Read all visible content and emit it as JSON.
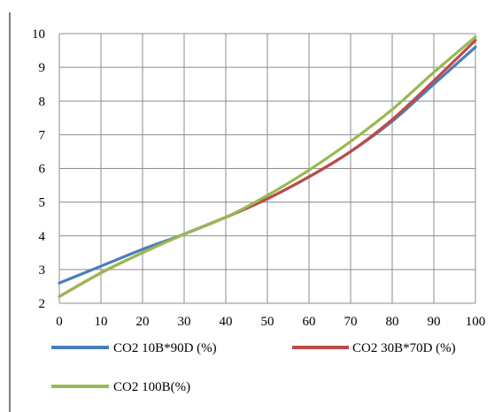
{
  "chart_data": {
    "type": "line",
    "title": "",
    "xlabel": "",
    "ylabel": "",
    "xlim": [
      0,
      100
    ],
    "ylim": [
      2,
      10
    ],
    "x_ticks": [
      "0",
      "10",
      "20",
      "30",
      "40",
      "50",
      "60",
      "70",
      "80",
      "90",
      "100"
    ],
    "y_ticks": [
      "2",
      "3",
      "4",
      "5",
      "6",
      "7",
      "8",
      "9",
      "10"
    ],
    "grid": true,
    "legend_position": "bottom",
    "series": [
      {
        "name": "CO2 10B*90D (%)",
        "color": "#4a7ebb",
        "x": [
          0,
          10,
          20,
          30,
          40,
          50,
          60,
          70,
          80,
          90,
          100
        ],
        "y": [
          2.6,
          3.1,
          3.6,
          4.05,
          4.55,
          5.1,
          5.75,
          6.5,
          7.4,
          8.5,
          9.6
        ]
      },
      {
        "name": "CO2 30B*70D (%)",
        "color": "#be4b48",
        "x": [
          0,
          10,
          20,
          30,
          40,
          50,
          60,
          70,
          80,
          90,
          100
        ],
        "y": [
          2.2,
          2.9,
          3.5,
          4.05,
          4.55,
          5.1,
          5.75,
          6.5,
          7.45,
          8.6,
          9.8
        ]
      },
      {
        "name": "CO2 100B(%)",
        "color": "#98b954",
        "x": [
          0,
          10,
          20,
          30,
          40,
          50,
          60,
          70,
          80,
          90,
          100
        ],
        "y": [
          2.2,
          2.9,
          3.5,
          4.05,
          4.55,
          5.2,
          5.95,
          6.8,
          7.75,
          8.85,
          9.9
        ]
      }
    ]
  }
}
